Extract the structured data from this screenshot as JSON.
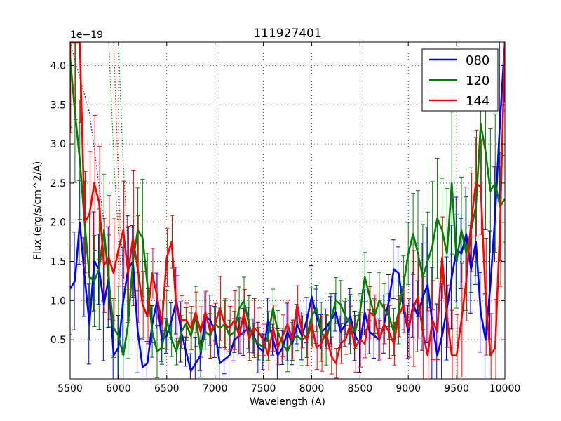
{
  "chart_data": {
    "type": "line",
    "title": "111927401",
    "xlabel": "Wavelength (A)",
    "ylabel": "Flux (erg/s/cm^2/A)",
    "offset_label": "1e−19",
    "xlim": [
      5500,
      10000
    ],
    "ylim": [
      0,
      4.3
    ],
    "xticks": [
      5500,
      6000,
      6500,
      7000,
      7500,
      8000,
      8500,
      9000,
      9500,
      10000
    ],
    "yticks": [
      0.5,
      1.0,
      1.5,
      2.0,
      2.5,
      3.0,
      3.5,
      4.0
    ],
    "xtick_labels": [
      "5500",
      "6000",
      "6500",
      "7000",
      "7500",
      "8000",
      "8500",
      "9000",
      "9500",
      "10000"
    ],
    "ytick_labels": [
      "0.5",
      "1.0",
      "1.5",
      "2.0",
      "2.5",
      "3.0",
      "3.5",
      "4.0"
    ],
    "grid": true,
    "legend": "top-right",
    "series": [
      {
        "name": "080",
        "color": "#0000ff",
        "x": [
          5500,
          5550,
          5600,
          5650,
          5700,
          5750,
          5800,
          5850,
          5900,
          5950,
          6000,
          6050,
          6100,
          6150,
          6200,
          6250,
          6300,
          6350,
          6400,
          6450,
          6500,
          6550,
          6600,
          6650,
          6700,
          6750,
          6800,
          6850,
          6900,
          6950,
          7000,
          7050,
          7100,
          7150,
          7200,
          7250,
          7300,
          7350,
          7400,
          7450,
          7500,
          7550,
          7600,
          7650,
          7700,
          7750,
          7800,
          7850,
          7900,
          7950,
          8000,
          8050,
          8100,
          8150,
          8200,
          8250,
          8300,
          8350,
          8400,
          8450,
          8500,
          8550,
          8600,
          8650,
          8700,
          8750,
          8800,
          8850,
          8900,
          8950,
          9000,
          9050,
          9100,
          9150,
          9200,
          9250,
          9300,
          9350,
          9400,
          9450,
          9500,
          9550,
          9600,
          9650,
          9700,
          9750,
          9800,
          9850,
          9900,
          9950,
          10000
        ],
        "y": [
          1.15,
          1.25,
          2.0,
          1.3,
          0.7,
          1.5,
          1.4,
          0.95,
          1.3,
          0.3,
          0.4,
          1.0,
          1.4,
          1.5,
          0.6,
          0.15,
          0.2,
          0.7,
          1.0,
          0.5,
          0.55,
          0.75,
          1.0,
          0.6,
          0.35,
          0.1,
          0.2,
          0.3,
          0.8,
          0.75,
          0.6,
          0.2,
          0.25,
          0.3,
          0.5,
          0.55,
          0.6,
          0.65,
          0.55,
          0.4,
          0.35,
          0.75,
          0.5,
          0.3,
          0.4,
          0.6,
          0.45,
          0.7,
          0.55,
          0.75,
          1.05,
          0.8,
          0.6,
          0.65,
          0.75,
          0.85,
          0.6,
          0.7,
          0.8,
          0.55,
          0.45,
          0.85,
          0.6,
          0.55,
          0.5,
          0.7,
          1.0,
          1.4,
          1.35,
          0.9,
          0.6,
          0.95,
          0.8,
          1.05,
          1.2,
          0.7,
          0.3,
          0.55,
          0.9,
          1.3,
          1.65,
          1.6,
          1.85,
          1.4,
          1.75,
          0.85,
          0.5,
          1.2,
          2.1,
          3.3,
          4.3
        ]
      },
      {
        "name": "120",
        "color": "#008000",
        "x": [
          5500,
          5550,
          5600,
          5650,
          5700,
          5750,
          5800,
          5850,
          5900,
          5950,
          6000,
          6050,
          6100,
          6150,
          6200,
          6250,
          6300,
          6350,
          6400,
          6450,
          6500,
          6550,
          6600,
          6650,
          6700,
          6750,
          6800,
          6850,
          6900,
          6950,
          7000,
          7050,
          7100,
          7150,
          7200,
          7250,
          7300,
          7350,
          7400,
          7450,
          7500,
          7550,
          7600,
          7650,
          7700,
          7750,
          7800,
          7850,
          7900,
          7950,
          8000,
          8050,
          8100,
          8150,
          8200,
          8250,
          8300,
          8350,
          8400,
          8450,
          8500,
          8550,
          8600,
          8650,
          8700,
          8750,
          8800,
          8850,
          8900,
          8950,
          9000,
          9050,
          9100,
          9150,
          9200,
          9250,
          9300,
          9350,
          9400,
          9450,
          9500,
          9550,
          9600,
          9650,
          9700,
          9750,
          9800,
          9850,
          9900,
          9950,
          10000
        ],
        "y": [
          4.1,
          3.4,
          2.8,
          2.0,
          1.3,
          1.25,
          1.4,
          1.9,
          1.25,
          0.65,
          0.55,
          0.3,
          0.7,
          1.5,
          1.9,
          1.8,
          1.2,
          0.6,
          0.35,
          0.4,
          0.75,
          0.5,
          0.35,
          0.6,
          0.7,
          0.55,
          0.8,
          0.35,
          0.6,
          0.55,
          0.7,
          0.65,
          0.7,
          0.55,
          0.6,
          0.9,
          1.0,
          0.7,
          0.5,
          0.45,
          0.4,
          0.55,
          0.9,
          0.6,
          0.45,
          0.35,
          0.5,
          0.55,
          0.5,
          0.55,
          0.8,
          0.9,
          0.6,
          0.5,
          0.75,
          1.0,
          0.95,
          0.8,
          0.7,
          0.6,
          0.85,
          1.3,
          1.05,
          0.8,
          1.0,
          0.9,
          0.8,
          0.6,
          0.85,
          1.2,
          1.6,
          1.85,
          1.6,
          1.3,
          1.5,
          1.7,
          2.05,
          1.9,
          1.6,
          2.5,
          1.5,
          1.9,
          1.6,
          1.9,
          2.2,
          3.25,
          2.9,
          2.4,
          2.5,
          2.2,
          2.3
        ]
      },
      {
        "name": "144",
        "color": "#ff0000",
        "x": [
          5500,
          5550,
          5600,
          5650,
          5700,
          5750,
          5800,
          5850,
          5900,
          5950,
          6000,
          6050,
          6100,
          6150,
          6200,
          6250,
          6300,
          6350,
          6400,
          6450,
          6500,
          6550,
          6600,
          6650,
          6700,
          6750,
          6800,
          6850,
          6900,
          6950,
          7000,
          7050,
          7100,
          7150,
          7200,
          7250,
          7300,
          7350,
          7400,
          7450,
          7500,
          7550,
          7600,
          7650,
          7700,
          7750,
          7800,
          7850,
          7900,
          7950,
          8000,
          8050,
          8100,
          8150,
          8200,
          8250,
          8300,
          8350,
          8400,
          8450,
          8500,
          8550,
          8600,
          8650,
          8700,
          8750,
          8800,
          8850,
          8900,
          8950,
          9000,
          9050,
          9100,
          9150,
          9200,
          9250,
          9300,
          9350,
          9400,
          9450,
          9500,
          9550,
          9600,
          9650,
          9700,
          9750,
          9800,
          9850,
          9900,
          9950,
          10000
        ],
        "y": [
          4.3,
          4.3,
          4.3,
          2.0,
          2.1,
          2.5,
          2.25,
          1.45,
          1.55,
          1.35,
          1.65,
          1.9,
          1.35,
          1.8,
          1.4,
          0.95,
          0.8,
          1.35,
          1.05,
          0.7,
          1.55,
          1.75,
          0.9,
          0.75,
          0.75,
          0.65,
          0.85,
          0.6,
          0.85,
          0.6,
          0.7,
          0.9,
          0.7,
          0.65,
          0.75,
          0.55,
          0.85,
          0.5,
          0.65,
          0.6,
          0.5,
          0.3,
          0.65,
          0.4,
          0.55,
          0.7,
          0.5,
          0.95,
          0.6,
          0.5,
          0.7,
          0.4,
          0.45,
          0.6,
          0.3,
          0.2,
          0.45,
          0.5,
          0.7,
          0.4,
          0.5,
          0.45,
          0.85,
          0.8,
          0.5,
          0.7,
          0.6,
          0.45,
          0.8,
          0.95,
          0.65,
          0.9,
          1.05,
          0.6,
          0.3,
          0.75,
          0.6,
          1.55,
          0.8,
          0.3,
          0.3,
          0.75,
          1.25,
          2.0,
          2.5,
          2.45,
          1.05,
          0.3,
          0.4,
          1.95,
          4.3
        ]
      }
    ],
    "dotted_segments": [
      {
        "color": "#0000ff",
        "x": [
          5500,
          5700,
          5850
        ],
        "y": [
          4.3,
          3.4,
          2.0
        ]
      },
      {
        "color": "#008000",
        "x": [
          5900,
          5960,
          6030
        ],
        "y": [
          4.3,
          2.6,
          1.3
        ]
      },
      {
        "color": "#ff0000",
        "x": [
          5950,
          6010,
          6060
        ],
        "y": [
          4.3,
          2.2,
          1.1
        ]
      },
      {
        "color": "#008000",
        "x": [
          6000,
          6040,
          6100
        ],
        "y": [
          4.3,
          3.0,
          1.6
        ]
      }
    ]
  }
}
